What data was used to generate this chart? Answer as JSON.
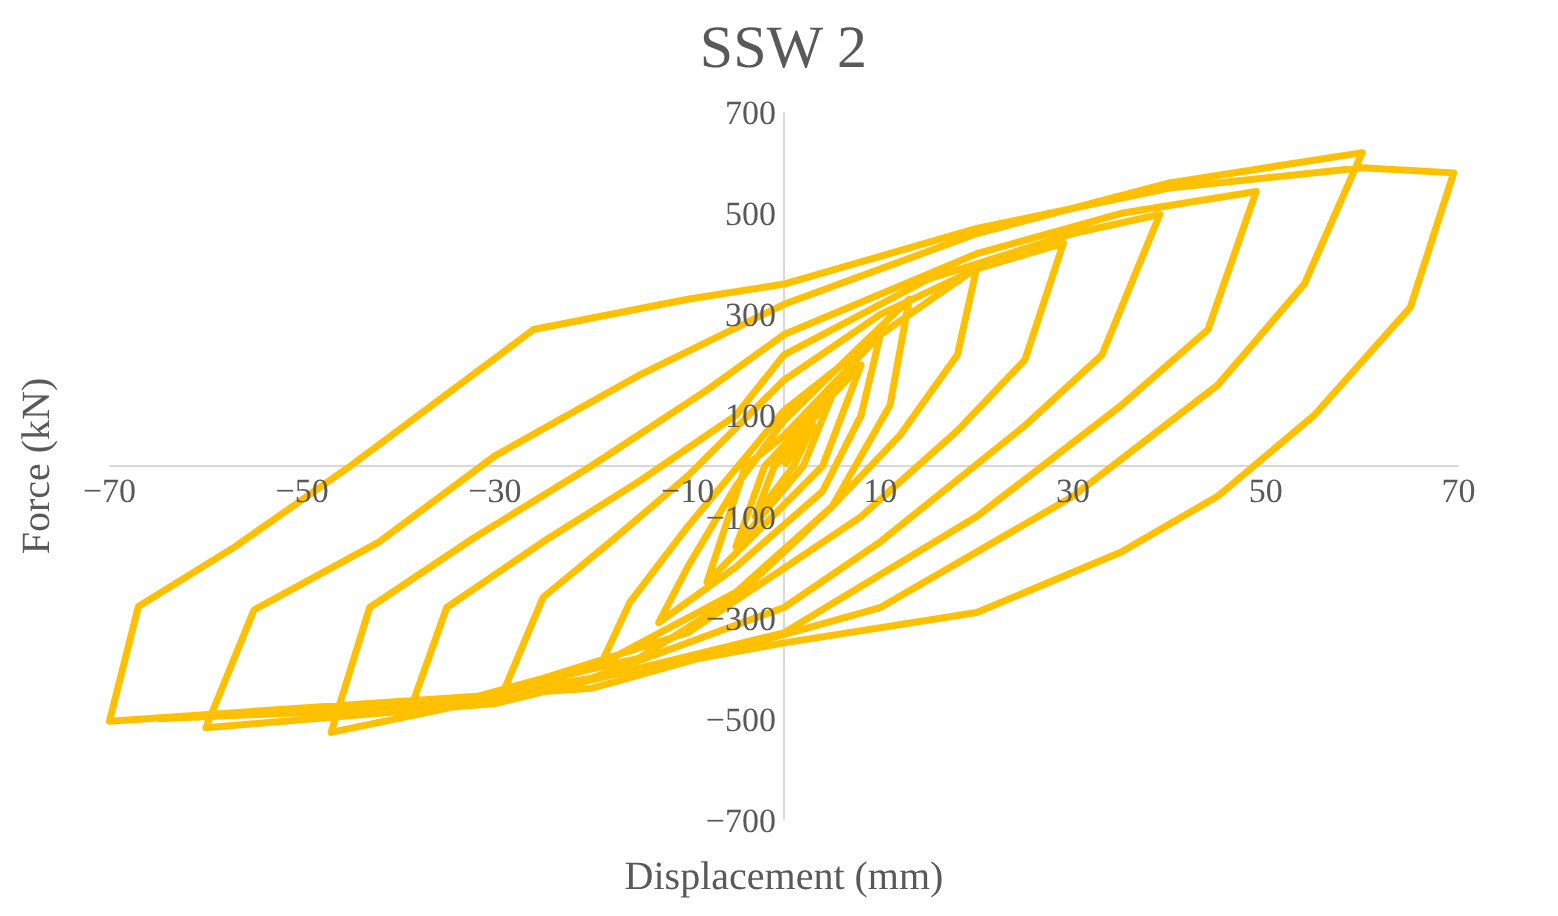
{
  "chart_data": {
    "type": "line",
    "title": "SSW 2",
    "xlabel": "Displacement (mm)",
    "ylabel": "Force (kN)",
    "xlim": [
      -70,
      70
    ],
    "ylim": [
      -700,
      700
    ],
    "xticks": [
      -70,
      -50,
      -30,
      -10,
      10,
      30,
      50,
      70
    ],
    "yticks": [
      -700,
      -500,
      -300,
      -100,
      100,
      300,
      500,
      700
    ],
    "grid": false,
    "marker": "none",
    "line_style": "solid",
    "series": [
      {
        "color": "#ffc000",
        "x": [
          0,
          3,
          1,
          -3,
          -1,
          0,
          5,
          2,
          -5,
          -2,
          0,
          8,
          4,
          -8,
          -4,
          0,
          5,
          10,
          8,
          4,
          -5,
          -13,
          -10,
          -5,
          0,
          7,
          13,
          11,
          5,
          -5,
          -19,
          -16,
          -10,
          -3,
          0,
          10,
          20,
          18,
          12,
          5,
          -5,
          -15,
          -29,
          -25,
          -18,
          -10,
          0,
          10,
          20,
          29,
          25,
          18,
          8,
          -10,
          -25,
          -39,
          -35,
          -25,
          -15,
          -5,
          0,
          15,
          30,
          39,
          33,
          25,
          10,
          0,
          -20,
          -47,
          -43,
          -32,
          -20,
          -8,
          0,
          20,
          35,
          49,
          44,
          35,
          20,
          0,
          -30,
          -60,
          -55,
          -42,
          -30,
          -15,
          0,
          20,
          40,
          60,
          54,
          45,
          30,
          10,
          -20,
          -70,
          -67,
          -57,
          -45,
          -26,
          -10,
          0,
          20,
          40,
          60,
          69.5,
          65,
          55,
          45,
          35,
          20,
          0,
          -20,
          -40,
          -65
        ],
        "values": [
          0,
          80,
          0,
          -100,
          0,
          20,
          140,
          0,
          -160,
          0,
          40,
          200,
          0,
          -230,
          0,
          60,
          160,
          260,
          100,
          -50,
          -200,
          -310,
          -200,
          -40,
          90,
          220,
          330,
          120,
          -80,
          -250,
          -392,
          -270,
          -120,
          40,
          110,
          260,
          392,
          220,
          60,
          -80,
          -260,
          -380,
          -441,
          -260,
          -150,
          -20,
          170,
          300,
          390,
          441,
          210,
          70,
          -100,
          -330,
          -420,
          -494,
          -280,
          -150,
          -30,
          100,
          220,
          370,
          460,
          498,
          220,
          80,
          -150,
          -280,
          -420,
          -527,
          -280,
          -140,
          0,
          150,
          260,
          420,
          500,
          543,
          270,
          120,
          -100,
          -330,
          -470,
          -518,
          -285,
          -150,
          20,
          180,
          320,
          460,
          560,
          620,
          360,
          160,
          -60,
          -280,
          -440,
          -505,
          -278,
          -160,
          0,
          270,
          330,
          360,
          470,
          550,
          590,
          580,
          314,
          100,
          -60,
          -170,
          -290,
          -350,
          -420,
          -480,
          -500
        ]
      }
    ]
  }
}
